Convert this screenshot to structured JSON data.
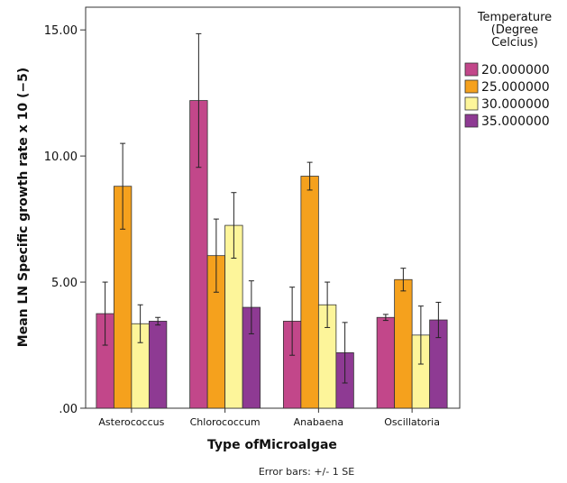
{
  "chart_data": {
    "type": "bar",
    "xlabel": "Type ofMicroalgae",
    "ylabel": "Mean LN Specific growth rate x 10 (−5)",
    "ylim": [
      0,
      15.9
    ],
    "yticks": [
      0,
      5,
      10,
      15
    ],
    "ytick_labels": [
      ".00",
      "5.00",
      "10.00",
      "15.00"
    ],
    "categories": [
      "Asterococcus",
      "Chlorococcum",
      "Anabaena",
      "Oscillatoria"
    ],
    "legend": {
      "title_lines": [
        "Temperature",
        "(Degree",
        "Celcius)"
      ],
      "placement": "right"
    },
    "series": [
      {
        "name": "20.000000",
        "color": "#c2478a",
        "values": [
          3.75,
          12.2,
          3.45,
          3.6
        ],
        "error": [
          1.25,
          2.65,
          1.35,
          0.12
        ]
      },
      {
        "name": "25.000000",
        "color": "#f5a11d",
        "values": [
          8.8,
          6.05,
          9.2,
          5.1
        ],
        "error": [
          1.7,
          1.45,
          0.55,
          0.45
        ]
      },
      {
        "name": "30.000000",
        "color": "#fdf59a",
        "values": [
          3.35,
          7.25,
          4.1,
          2.9
        ],
        "error": [
          0.75,
          1.3,
          0.9,
          1.15
        ]
      },
      {
        "name": "35.000000",
        "color": "#8e3a93",
        "values": [
          3.45,
          4.0,
          2.2,
          3.5
        ],
        "error": [
          0.15,
          1.05,
          1.2,
          0.7
        ]
      }
    ],
    "footnote": "Error bars: +/- 1 SE"
  }
}
